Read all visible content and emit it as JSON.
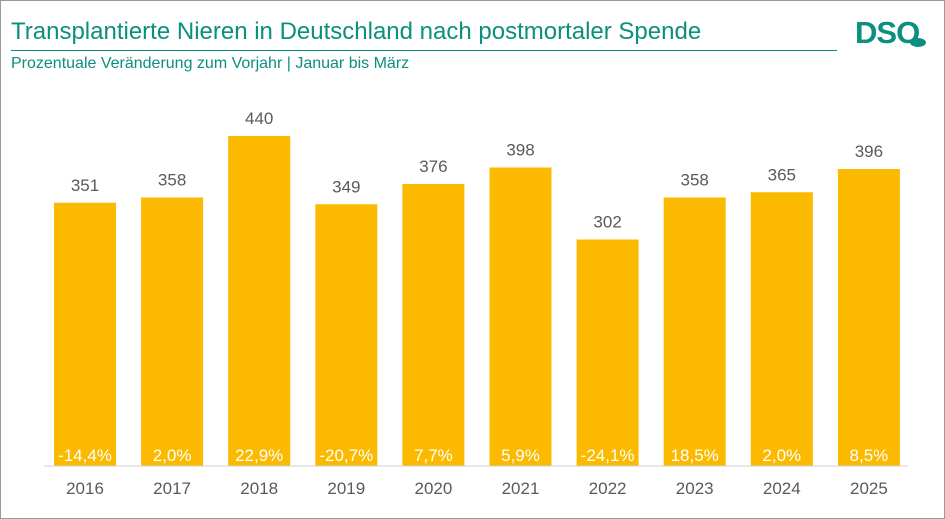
{
  "header": {
    "title": "Transplantierte Nieren in Deutschland nach postmortaler Spende",
    "subtitle": "Prozentuale Veränderung zum Vorjahr | Januar bis März",
    "logo_text": "DSO"
  },
  "colors": {
    "accent": "#0b8f7e",
    "bar": "#fbba00",
    "value_text": "#5a5a5a",
    "percent_text": "#ffffff"
  },
  "chart_data": {
    "type": "bar",
    "title": "Transplantierte Nieren in Deutschland nach postmortaler Spende",
    "subtitle": "Prozentuale Veränderung zum Vorjahr | Januar bis März",
    "categories": [
      "2016",
      "2017",
      "2018",
      "2019",
      "2020",
      "2021",
      "2022",
      "2023",
      "2024",
      "2025"
    ],
    "values": [
      351,
      358,
      440,
      349,
      376,
      398,
      302,
      358,
      365,
      396
    ],
    "percent_change": [
      "-14,4%",
      "2,0%",
      "22,9%",
      "-20,7%",
      "7,7%",
      "5,9%",
      "-24,1%",
      "18,5%",
      "2,0%",
      "8,5%"
    ],
    "ylim": [
      0,
      480
    ],
    "grid": false,
    "legend": "none"
  }
}
